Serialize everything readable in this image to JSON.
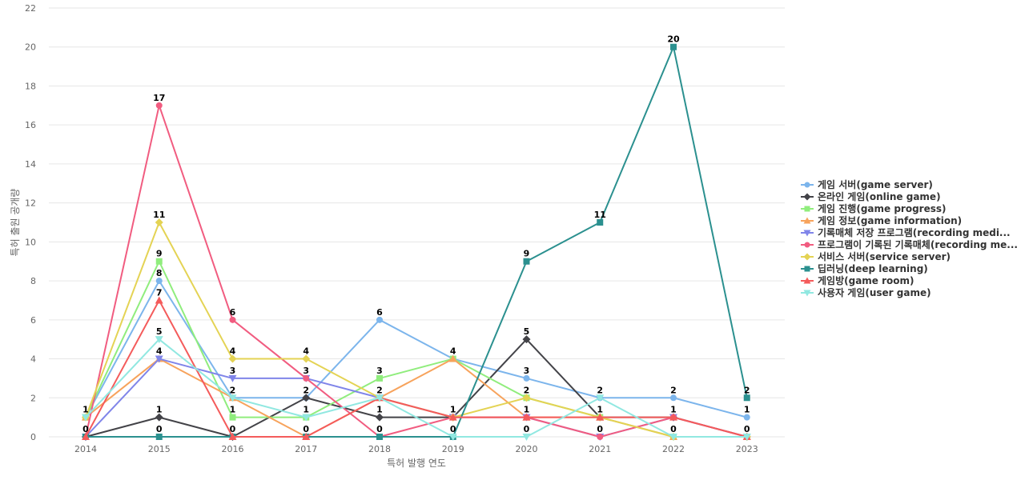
{
  "chart_data": {
    "type": "line",
    "xlabel": "특허 발행 연도",
    "ylabel": "특허 출원 공개량",
    "ylim": [
      0,
      22
    ],
    "y_ticks": [
      0,
      2,
      4,
      6,
      8,
      10,
      12,
      14,
      16,
      18,
      20,
      22
    ],
    "x": [
      "2014",
      "2015",
      "2016",
      "2017",
      "2018",
      "2019",
      "2020",
      "2021",
      "2022",
      "2023"
    ],
    "grid": "horizontal",
    "legend_position": "right",
    "data_labels": true,
    "series": [
      {
        "name": "게임 서버(game server)",
        "color": "#7cb5ec",
        "marker": "circle",
        "values": [
          1,
          8,
          2,
          2,
          6,
          4,
          3,
          2,
          2,
          1
        ]
      },
      {
        "name": "온라인 게임(online game)",
        "color": "#434348",
        "marker": "diamond",
        "values": [
          0,
          1,
          0,
          2,
          1,
          1,
          5,
          1,
          1,
          0
        ]
      },
      {
        "name": "게임 진행(game progress)",
        "color": "#90ed7d",
        "marker": "square",
        "values": [
          1,
          9,
          1,
          1,
          3,
          4,
          2,
          1,
          0,
          0
        ]
      },
      {
        "name": "게임 정보(game information)",
        "color": "#f7a35c",
        "marker": "triangle",
        "values": [
          1,
          4,
          2,
          0,
          2,
          4,
          1,
          1,
          0,
          0
        ]
      },
      {
        "name": "기록매체 저장 프로그램(recording medi...",
        "color": "#8085e9",
        "marker": "triangle-down",
        "values": [
          0,
          4,
          3,
          3,
          2,
          1,
          1,
          0,
          1,
          0
        ]
      },
      {
        "name": "프로그램이 기록된 기록매체(recording me...",
        "color": "#f15c80",
        "marker": "circle",
        "values": [
          0,
          17,
          6,
          3,
          0,
          1,
          1,
          0,
          1,
          0
        ]
      },
      {
        "name": "서비스 서버(service server)",
        "color": "#e4d354",
        "marker": "diamond",
        "values": [
          1,
          11,
          4,
          4,
          2,
          1,
          2,
          1,
          0,
          0
        ]
      },
      {
        "name": "딥러닝(deep learning)",
        "color": "#2b908f",
        "marker": "square",
        "values": [
          0,
          0,
          0,
          0,
          0,
          0,
          9,
          11,
          20,
          2
        ]
      },
      {
        "name": "게임방(game room)",
        "color": "#f45b5b",
        "marker": "triangle",
        "values": [
          0,
          7,
          0,
          0,
          2,
          1,
          1,
          1,
          1,
          0
        ]
      },
      {
        "name": "사용자 게임(user game)",
        "color": "#91e8e1",
        "marker": "triangle-down",
        "values": [
          1,
          5,
          2,
          1,
          2,
          0,
          0,
          2,
          0,
          0
        ]
      }
    ],
    "point_labels": [
      {
        "series": 0,
        "x": "2014",
        "text": "1"
      },
      {
        "series": 1,
        "x": "2014",
        "text": "0"
      },
      {
        "series": 0,
        "x": "2015",
        "text": "8"
      },
      {
        "series": 1,
        "x": "2015",
        "text": "1"
      },
      {
        "series": 2,
        "x": "2015",
        "text": "9"
      },
      {
        "series": 3,
        "x": "2015",
        "text": "4"
      },
      {
        "series": 5,
        "x": "2015",
        "text": "17"
      },
      {
        "series": 6,
        "x": "2015",
        "text": "11"
      },
      {
        "series": 7,
        "x": "2015",
        "text": "0"
      },
      {
        "series": 8,
        "x": "2015",
        "text": "7"
      },
      {
        "series": 9,
        "x": "2015",
        "text": "5"
      },
      {
        "series": 0,
        "x": "2016",
        "text": "2"
      },
      {
        "series": 1,
        "x": "2016",
        "text": "0"
      },
      {
        "series": 2,
        "x": "2016",
        "text": "1"
      },
      {
        "series": 4,
        "x": "2016",
        "text": "3"
      },
      {
        "series": 5,
        "x": "2016",
        "text": "6"
      },
      {
        "series": 6,
        "x": "2016",
        "text": "4"
      },
      {
        "series": 1,
        "x": "2017",
        "text": "2"
      },
      {
        "series": 2,
        "x": "2017",
        "text": "1"
      },
      {
        "series": 3,
        "x": "2017",
        "text": "0"
      },
      {
        "series": 4,
        "x": "2017",
        "text": "3"
      },
      {
        "series": 6,
        "x": "2017",
        "text": "4"
      },
      {
        "series": 0,
        "x": "2018",
        "text": "6"
      },
      {
        "series": 1,
        "x": "2018",
        "text": "1"
      },
      {
        "series": 2,
        "x": "2018",
        "text": "3"
      },
      {
        "series": 3,
        "x": "2018",
        "text": "2"
      },
      {
        "series": 5,
        "x": "2018",
        "text": "0"
      },
      {
        "series": 0,
        "x": "2019",
        "text": "4"
      },
      {
        "series": 1,
        "x": "2019",
        "text": "1"
      },
      {
        "series": 7,
        "x": "2019",
        "text": "0"
      },
      {
        "series": 0,
        "x": "2020",
        "text": "3"
      },
      {
        "series": 1,
        "x": "2020",
        "text": "5"
      },
      {
        "series": 2,
        "x": "2020",
        "text": "2"
      },
      {
        "series": 3,
        "x": "2020",
        "text": "1"
      },
      {
        "series": 7,
        "x": "2020",
        "text": "9"
      },
      {
        "series": 9,
        "x": "2020",
        "text": "0"
      },
      {
        "series": 1,
        "x": "2021",
        "text": "1"
      },
      {
        "series": 4,
        "x": "2021",
        "text": "0"
      },
      {
        "series": 7,
        "x": "2021",
        "text": "11"
      },
      {
        "series": 9,
        "x": "2021",
        "text": "2"
      },
      {
        "series": 0,
        "x": "2022",
        "text": "2"
      },
      {
        "series": 2,
        "x": "2022",
        "text": "0"
      },
      {
        "series": 7,
        "x": "2022",
        "text": "20"
      },
      {
        "series": 8,
        "x": "2022",
        "text": "1"
      },
      {
        "series": 0,
        "x": "2023",
        "text": "1"
      },
      {
        "series": 1,
        "x": "2023",
        "text": "0"
      },
      {
        "series": 7,
        "x": "2023",
        "text": "2"
      }
    ]
  }
}
